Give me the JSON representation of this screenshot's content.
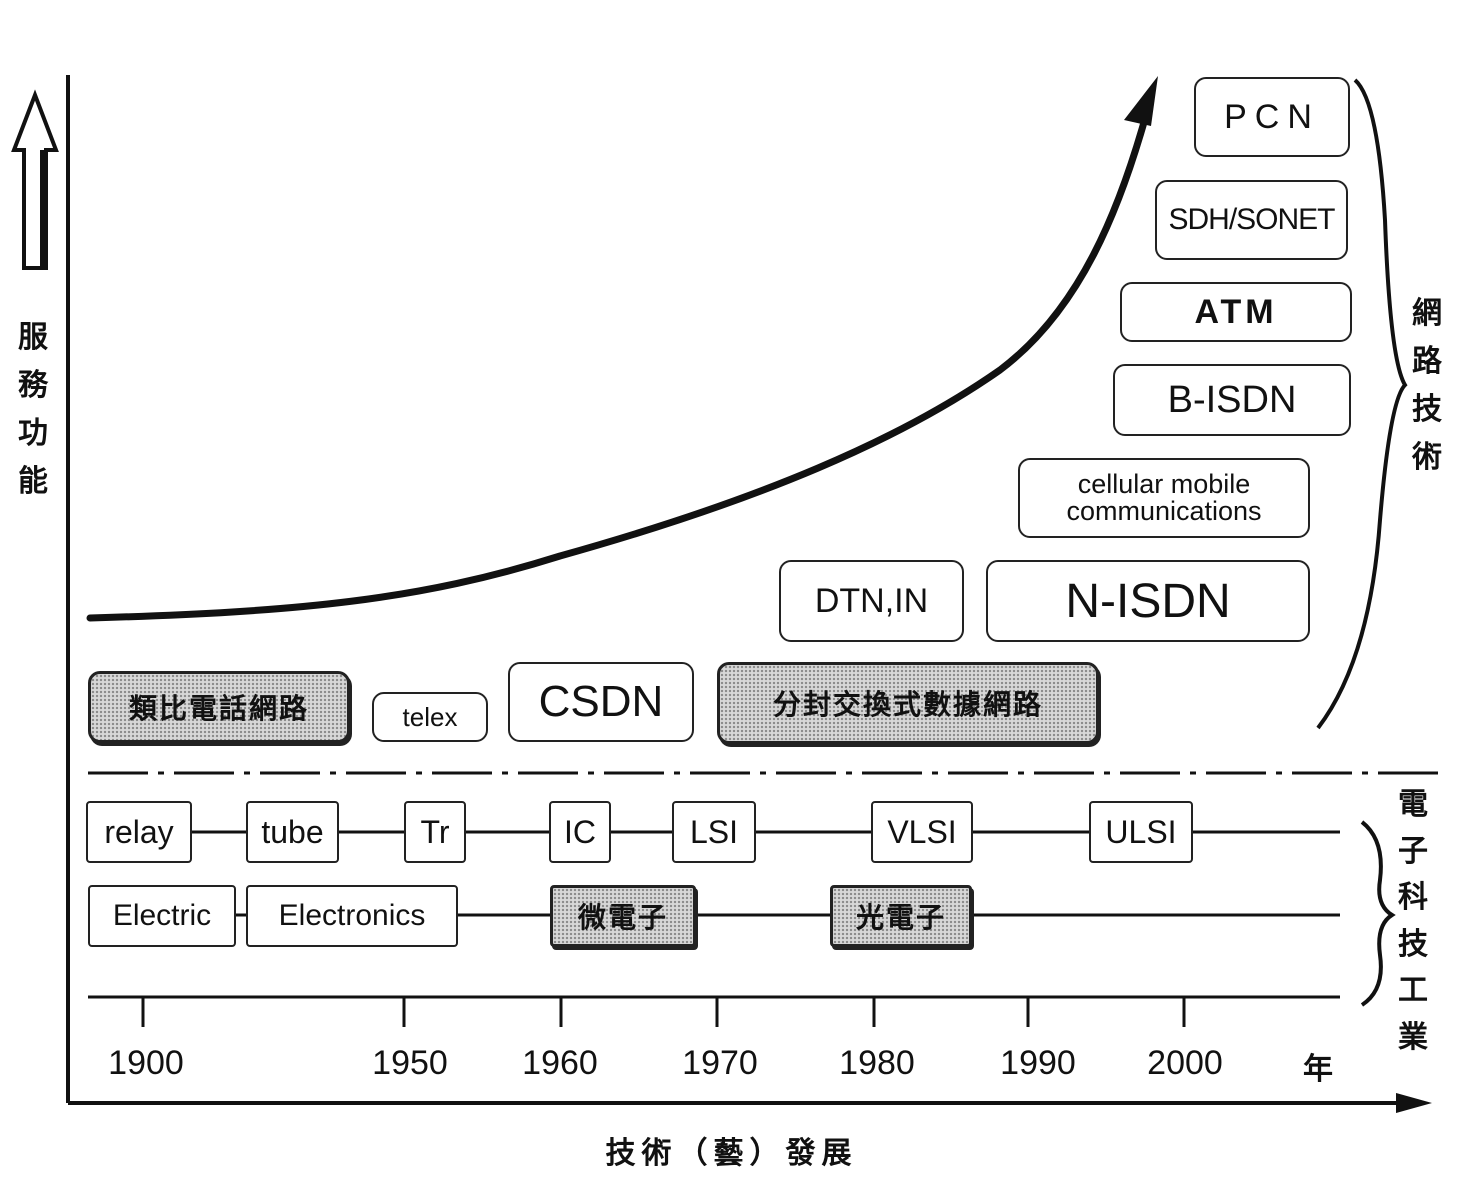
{
  "y_axis_label": [
    "服",
    "務",
    "功",
    "能"
  ],
  "x_axis_label": "技術（藝）發展",
  "network_tech_label": [
    "網",
    "路",
    "技",
    "術"
  ],
  "electronics_label": [
    "電",
    "子",
    "科",
    "技",
    "工",
    "業"
  ],
  "network_boxes": {
    "pcn": "PCN",
    "sdh": "SDH/SONET",
    "atm": "ATM",
    "bisdn": "B-ISDN",
    "cellular_line1": "cellular mobile",
    "cellular_line2": "communications",
    "dtn": "DTN,IN",
    "nisdn": "N-ISDN",
    "analog": "類比電話網路",
    "telex": "telex",
    "csdn": "CSDN",
    "packet": "分封交換式數據網路"
  },
  "device_row": [
    "relay",
    "tube",
    "Tr",
    "IC",
    "LSI",
    "VLSI",
    "ULSI"
  ],
  "field_row": [
    "Electric",
    "Electronics",
    "微電子",
    "光電子"
  ],
  "years": [
    "1900",
    "1950",
    "1960",
    "1970",
    "1980",
    "1990",
    "2000"
  ],
  "year_unit": "年"
}
